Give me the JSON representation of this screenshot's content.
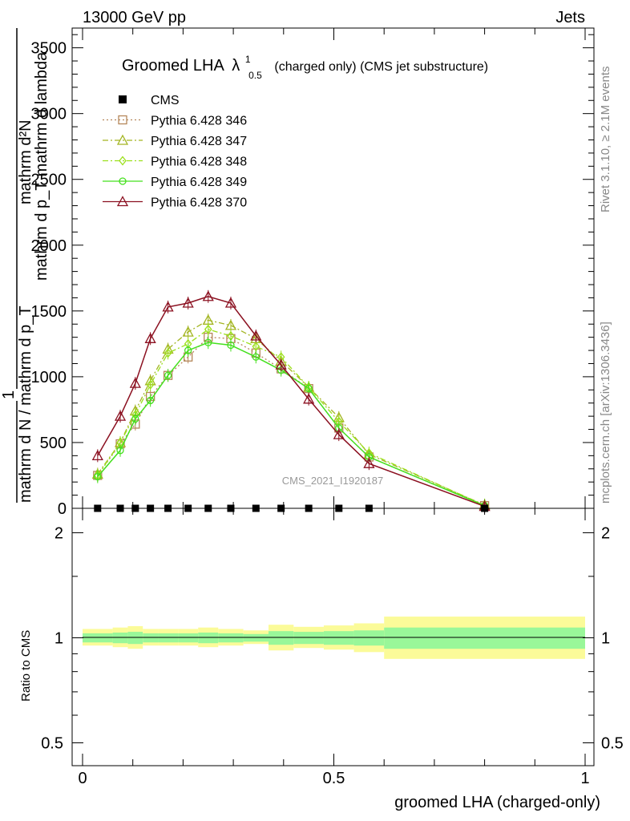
{
  "header": {
    "left": "13000 GeV pp",
    "right": "Jets"
  },
  "side_labels": {
    "rivet": "Rivet 3.1.10, ≥ 2.1M events",
    "mcplots": "mcplots.cern.ch [arXiv:1306.3436]"
  },
  "watermark": "CMS_2021_I1920187",
  "colors": {
    "CMS": "#000000",
    "p346": "#b5875a",
    "p347": "#a3b522",
    "p348": "#9be01b",
    "p349": "#45e01e",
    "p370": "#8b1020",
    "band_inner": "#99f799",
    "band_outer": "#fbfb99"
  },
  "chart_data": [
    {
      "type": "line",
      "title": "Groomed LHA",
      "title_symbol": "λ",
      "title_sup": "1",
      "title_sub": "0.5",
      "title_suffix": "(charged only) (CMS jet substructure)",
      "xlabel": "",
      "ylabel_line1": "mathrm d²N",
      "ylabel_line2": "mathrm d p_T mathrm d lambda",
      "ylabel_line3": "1",
      "ylabel_line4": "mathrm d N / mathrm d p_T",
      "xlim": [
        0,
        1
      ],
      "ylim": [
        0,
        3650
      ],
      "yticks": [
        0,
        500,
        1000,
        1500,
        2000,
        2500,
        3000,
        3500
      ],
      "ytick_labels": [
        "0",
        "500",
        "1000",
        "1500",
        "2000",
        "2500",
        "3000",
        "3500"
      ],
      "x": [
        0.03,
        0.075,
        0.105,
        0.135,
        0.17,
        0.21,
        0.25,
        0.295,
        0.345,
        0.395,
        0.45,
        0.51,
        0.57,
        0.8
      ],
      "legend_position": "top-left",
      "series": [
        {
          "name": "CMS",
          "style": "data",
          "y": [
            0,
            0,
            0,
            0,
            0,
            0,
            0,
            0,
            0,
            0,
            0,
            0,
            0,
            0
          ]
        },
        {
          "name": "Pythia 6.428 346",
          "style": "dotted",
          "marker": "square",
          "y": [
            250,
            490,
            640,
            850,
            1010,
            1150,
            1300,
            1290,
            1180,
            1060,
            910,
            610,
            390,
            20
          ]
        },
        {
          "name": "Pythia 6.428 347",
          "style": "dashdot",
          "marker": "triangle",
          "y": [
            260,
            500,
            740,
            970,
            1210,
            1340,
            1430,
            1390,
            1290,
            1120,
            920,
            690,
            410,
            25
          ]
        },
        {
          "name": "Pythia 6.428 348",
          "style": "dashdot",
          "marker": "diamond",
          "y": [
            250,
            500,
            710,
            940,
            1180,
            1250,
            1360,
            1310,
            1230,
            1150,
            920,
            660,
            420,
            22
          ]
        },
        {
          "name": "Pythia 6.428 349",
          "style": "solid",
          "marker": "circle",
          "y": [
            240,
            440,
            680,
            820,
            1010,
            1200,
            1260,
            1240,
            1150,
            1050,
            910,
            610,
            390,
            20
          ]
        },
        {
          "name": "Pythia 6.428 370",
          "style": "solid",
          "marker": "triangle",
          "y": [
            400,
            700,
            950,
            1290,
            1530,
            1560,
            1610,
            1560,
            1310,
            1090,
            830,
            560,
            340,
            15
          ]
        }
      ]
    },
    {
      "type": "area",
      "xlabel": "groomed LHA (charged-only)",
      "ylabel": "Ratio to CMS",
      "xlim": [
        0,
        1
      ],
      "ylim": [
        0.43,
        2.35
      ],
      "log_y": true,
      "yticks": [
        0.5,
        1,
        2
      ],
      "ytick_labels": [
        "0.5",
        "1",
        "2"
      ],
      "xticks": [
        0,
        0.5,
        1
      ],
      "xtick_labels": [
        "0",
        "0.5",
        "1"
      ],
      "bins": [
        {
          "x0": 0.0,
          "x1": 0.06,
          "inner": [
            0.97,
            1.03
          ],
          "outer": [
            0.95,
            1.06
          ]
        },
        {
          "x0": 0.06,
          "x1": 0.09,
          "inner": [
            0.965,
            1.035
          ],
          "outer": [
            0.94,
            1.07
          ]
        },
        {
          "x0": 0.09,
          "x1": 0.12,
          "inner": [
            0.96,
            1.04
          ],
          "outer": [
            0.93,
            1.08
          ]
        },
        {
          "x0": 0.12,
          "x1": 0.15,
          "inner": [
            0.97,
            1.03
          ],
          "outer": [
            0.95,
            1.06
          ]
        },
        {
          "x0": 0.15,
          "x1": 0.19,
          "inner": [
            0.97,
            1.03
          ],
          "outer": [
            0.95,
            1.06
          ]
        },
        {
          "x0": 0.19,
          "x1": 0.23,
          "inner": [
            0.97,
            1.03
          ],
          "outer": [
            0.95,
            1.06
          ]
        },
        {
          "x0": 0.23,
          "x1": 0.27,
          "inner": [
            0.965,
            1.035
          ],
          "outer": [
            0.94,
            1.07
          ]
        },
        {
          "x0": 0.27,
          "x1": 0.32,
          "inner": [
            0.97,
            1.03
          ],
          "outer": [
            0.95,
            1.06
          ]
        },
        {
          "x0": 0.32,
          "x1": 0.37,
          "inner": [
            0.975,
            1.025
          ],
          "outer": [
            0.96,
            1.05
          ]
        },
        {
          "x0": 0.37,
          "x1": 0.42,
          "inner": [
            0.955,
            1.045
          ],
          "outer": [
            0.92,
            1.09
          ]
        },
        {
          "x0": 0.42,
          "x1": 0.48,
          "inner": [
            0.96,
            1.04
          ],
          "outer": [
            0.935,
            1.075
          ]
        },
        {
          "x0": 0.48,
          "x1": 0.54,
          "inner": [
            0.955,
            1.045
          ],
          "outer": [
            0.925,
            1.085
          ]
        },
        {
          "x0": 0.54,
          "x1": 0.6,
          "inner": [
            0.95,
            1.05
          ],
          "outer": [
            0.91,
            1.1
          ]
        },
        {
          "x0": 0.6,
          "x1": 1.0,
          "inner": [
            0.93,
            1.07
          ],
          "outer": [
            0.87,
            1.15
          ]
        }
      ]
    }
  ]
}
